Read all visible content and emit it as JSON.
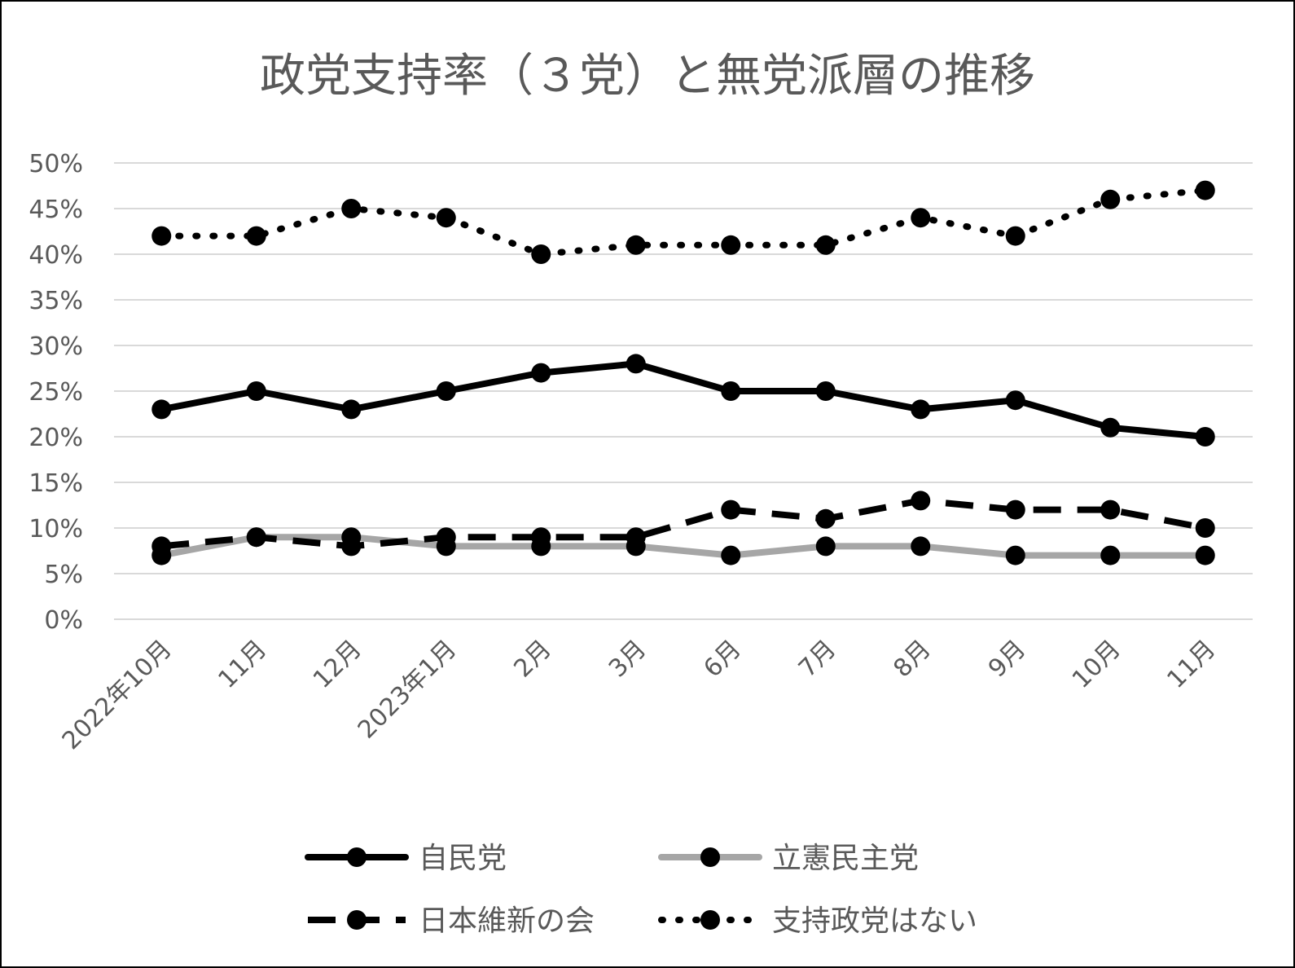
{
  "chart_data": {
    "type": "line",
    "title": "政党支持率（３党）と無党派層の推移",
    "xlabel": "",
    "ylabel": "",
    "categories": [
      "2022年10月",
      "11月",
      "12月",
      "2023年1月",
      "2月",
      "3月",
      "6月",
      "7月",
      "8月",
      "9月",
      "10月",
      "11月"
    ],
    "ylim": [
      0,
      50
    ],
    "yticks": [
      0,
      5,
      10,
      15,
      20,
      25,
      30,
      35,
      40,
      45,
      50
    ],
    "ytick_suffix": "%",
    "grid": "horizontal",
    "legend_position": "bottom",
    "series": [
      {
        "name": "自民党",
        "values": [
          23,
          25,
          23,
          25,
          27,
          28,
          25,
          25,
          23,
          24,
          21,
          20
        ],
        "color": "#000000",
        "line_style": "solid"
      },
      {
        "name": "立憲民主党",
        "values": [
          7,
          9,
          9,
          8,
          8,
          8,
          7,
          8,
          8,
          7,
          7,
          7
        ],
        "color": "#a6a6a6",
        "line_style": "solid"
      },
      {
        "name": "日本維新の会",
        "values": [
          8,
          9,
          8,
          9,
          9,
          9,
          12,
          11,
          13,
          12,
          12,
          10
        ],
        "color": "#000000",
        "line_style": "dashed"
      },
      {
        "name": "支持政党はない",
        "values": [
          42,
          42,
          45,
          44,
          40,
          41,
          41,
          41,
          44,
          42,
          46,
          47
        ],
        "color": "#000000",
        "line_style": "dotted"
      }
    ]
  }
}
